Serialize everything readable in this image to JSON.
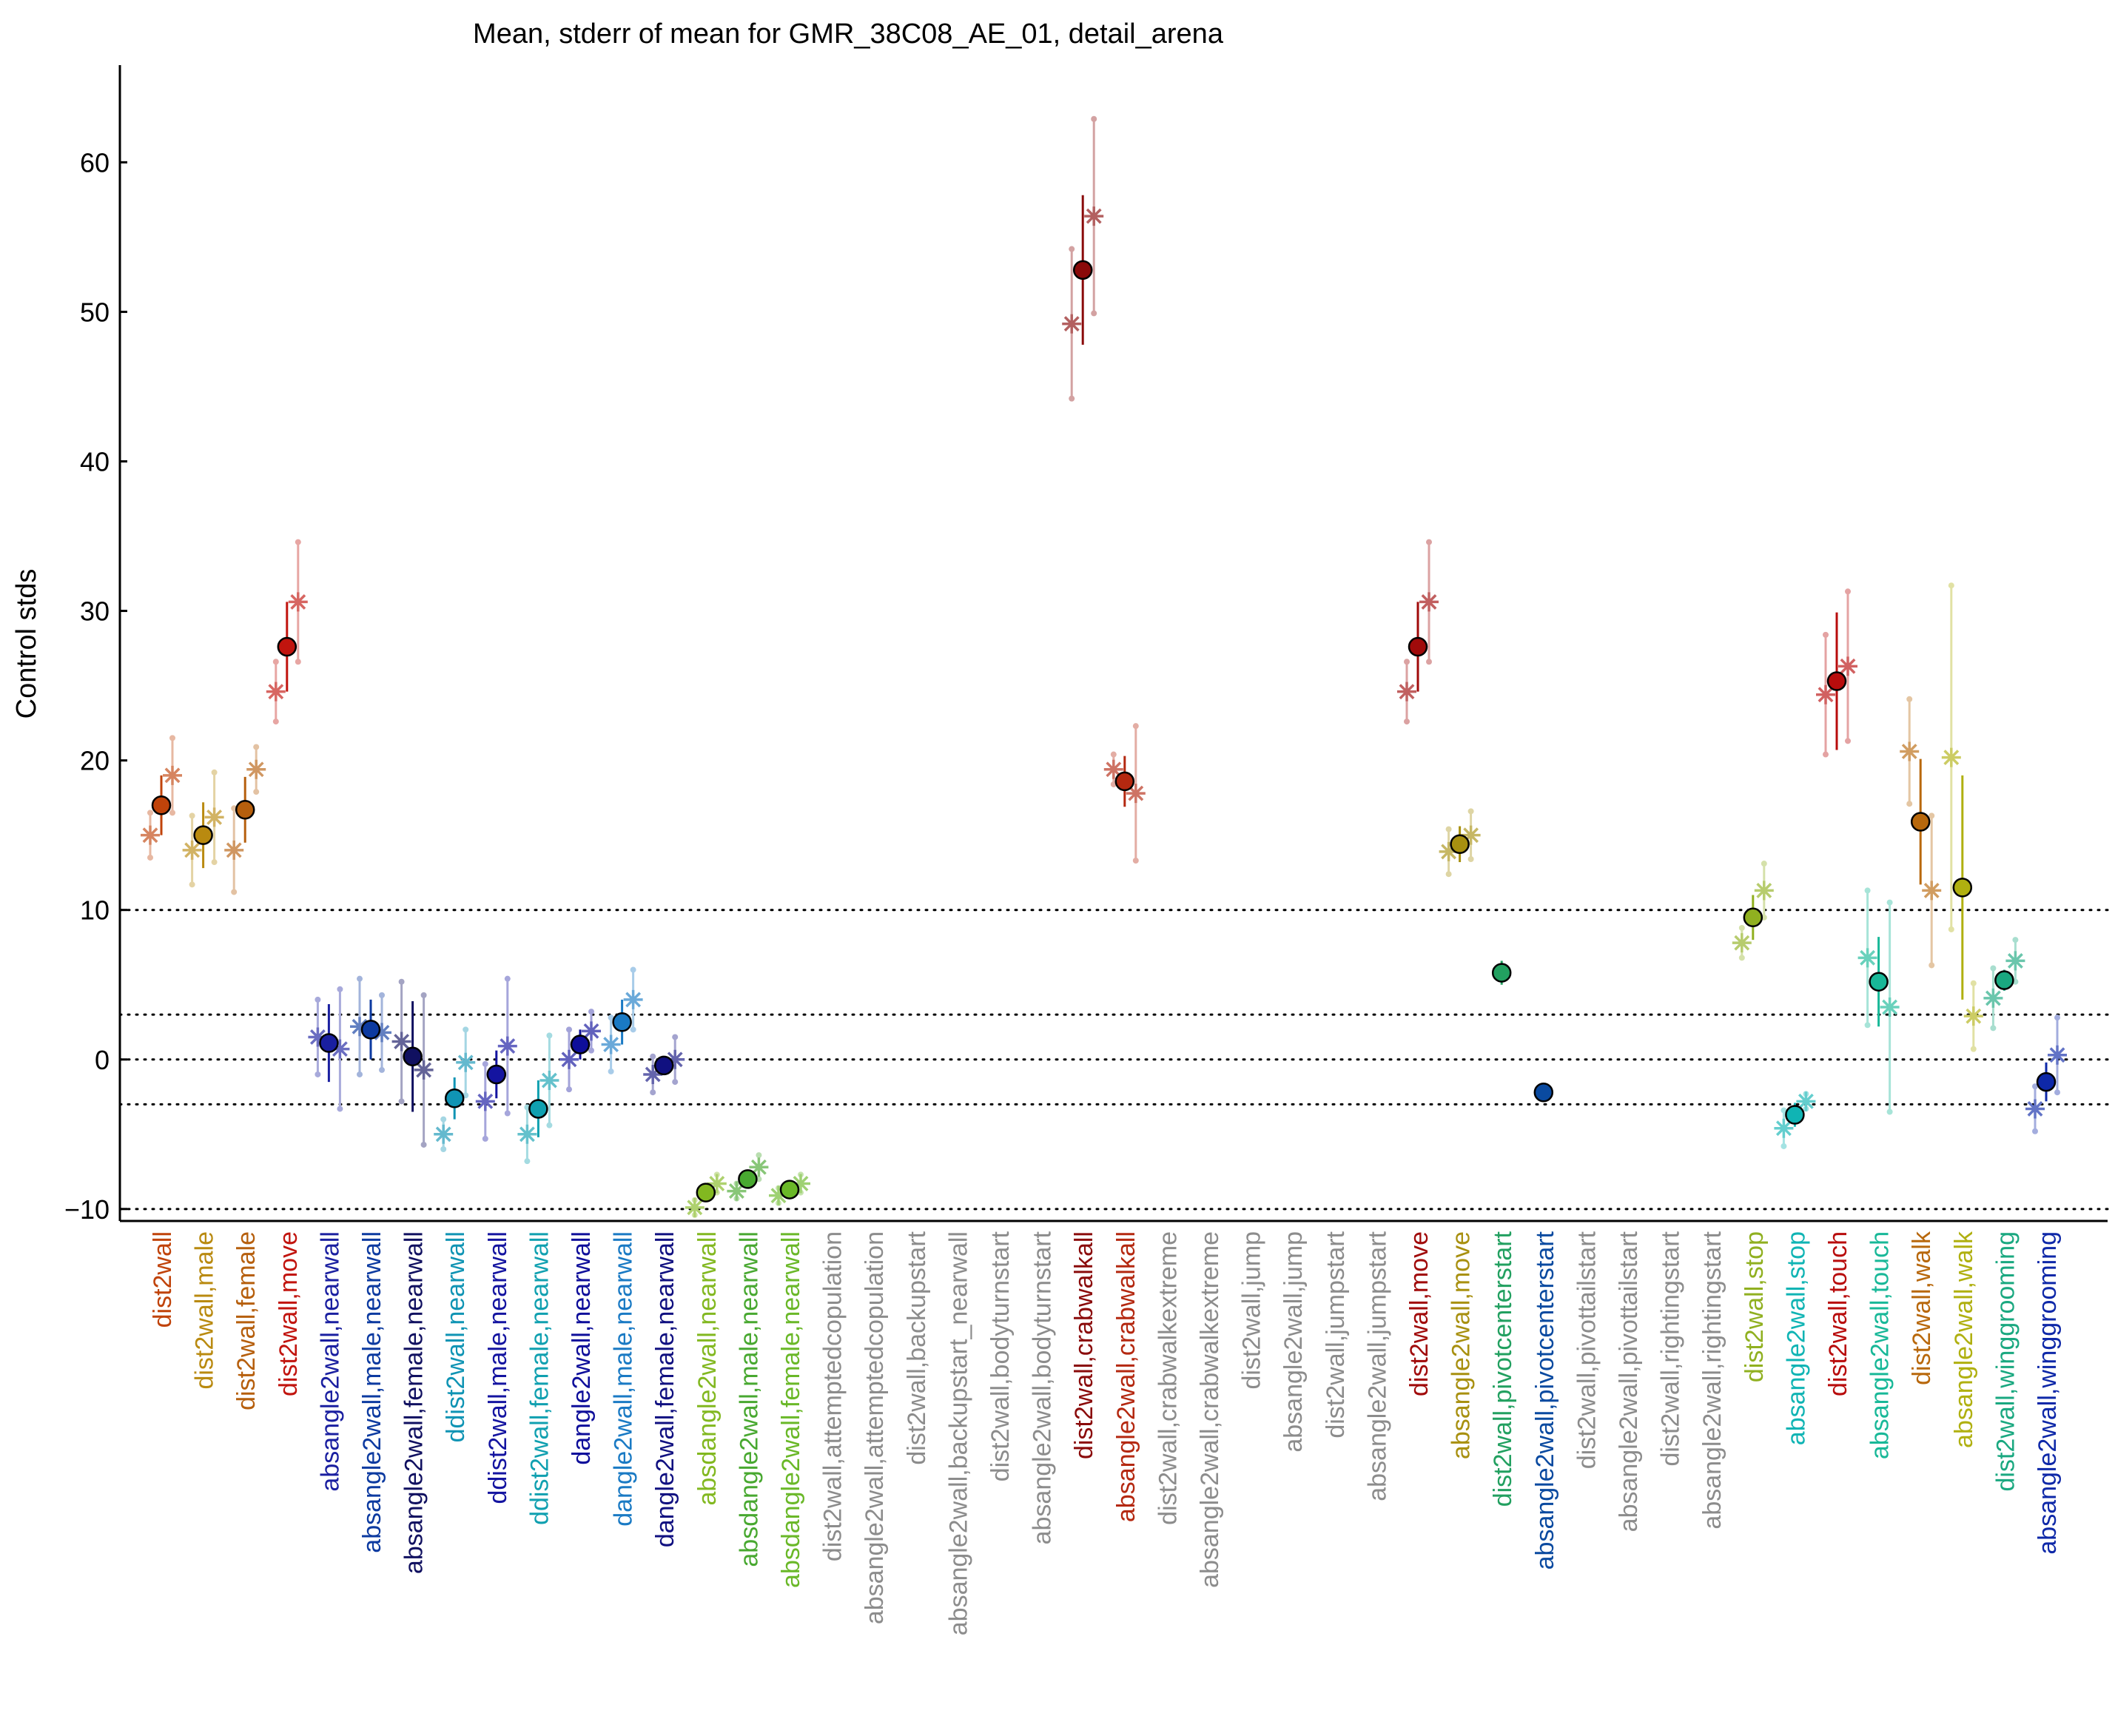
{
  "chart_data": {
    "type": "scatter",
    "title": "Mean, stderr of mean for GMR_38C08_AE_01, detail_arena",
    "ylabel": "Control stds",
    "xlabel": "",
    "ylim": [
      -10.8,
      66.5
    ],
    "yticks": [
      -10,
      0,
      10,
      20,
      30,
      40,
      50,
      60
    ],
    "reference_lines": [
      -10,
      -3,
      0,
      3,
      10
    ],
    "grid": false,
    "series": [
      {
        "label": "dist2wall",
        "color": "#c0430a",
        "mean": 17.0,
        "sem": 2.0,
        "a": 15.0,
        "a_sem": 1.5,
        "b": 19.0,
        "b_sem": 2.5
      },
      {
        "label": "dist2wall,male",
        "color": "#b98a10",
        "mean": 15.0,
        "sem": 2.2,
        "a": 14.0,
        "a_sem": 2.3,
        "b": 16.2,
        "b_sem": 3.0
      },
      {
        "label": "dist2wall,female",
        "color": "#b65f0d",
        "mean": 16.7,
        "sem": 2.2,
        "a": 14.0,
        "a_sem": 2.8,
        "b": 19.4,
        "b_sem": 1.5
      },
      {
        "label": "dist2wall,move",
        "color": "#c1140e",
        "mean": 27.6,
        "sem": 3.0,
        "a": 24.6,
        "a_sem": 2.0,
        "b": 30.6,
        "b_sem": 4.0
      },
      {
        "label": "absangle2wall,nearwall",
        "color": "#1a1fa0",
        "mean": 1.1,
        "sem": 2.6,
        "a": 1.5,
        "a_sem": 2.5,
        "b": 0.7,
        "b_sem": 4.0
      },
      {
        "label": "absangle2wall,male,nearwall",
        "color": "#0c3aa0",
        "mean": 2.0,
        "sem": 2.0,
        "a": 2.2,
        "a_sem": 3.2,
        "b": 1.8,
        "b_sem": 2.5
      },
      {
        "label": "absangle2wall,female,nearwall",
        "color": "#101060",
        "mean": 0.2,
        "sem": 3.7,
        "a": 1.2,
        "a_sem": 4.0,
        "b": -0.7,
        "b_sem": 5.0
      },
      {
        "label": "ddist2wall,nearwall",
        "color": "#1094b4",
        "mean": -2.6,
        "sem": 1.4,
        "a": -5.0,
        "a_sem": 1.0,
        "b": -0.2,
        "b_sem": 2.2
      },
      {
        "label": "ddist2wall,male,nearwall",
        "color": "#1414a0",
        "mean": -1.0,
        "sem": 1.6,
        "a": -2.8,
        "a_sem": 2.5,
        "b": 0.9,
        "b_sem": 4.5
      },
      {
        "label": "ddist2wall,female,nearwall",
        "color": "#10a0b0",
        "mean": -3.3,
        "sem": 1.9,
        "a": -5.0,
        "a_sem": 1.8,
        "b": -1.4,
        "b_sem": 3.0
      },
      {
        "label": "dangle2wall,nearwall",
        "color": "#0e0e9a",
        "mean": 1.0,
        "sem": 1.0,
        "a": 0.0,
        "a_sem": 2.0,
        "b": 1.9,
        "b_sem": 1.3
      },
      {
        "label": "dangle2wall,male,nearwall",
        "color": "#1a7ac4",
        "mean": 2.5,
        "sem": 1.5,
        "a": 1.0,
        "a_sem": 1.8,
        "b": 4.0,
        "b_sem": 2.0
      },
      {
        "label": "dangle2wall,female,nearwall",
        "color": "#101080",
        "mean": -0.4,
        "sem": 0.6,
        "a": -1.0,
        "a_sem": 1.2,
        "b": 0.0,
        "b_sem": 1.5
      },
      {
        "label": "absdangle2wall,nearwall",
        "color": "#82b820",
        "mean": -8.9,
        "sem": 0.5,
        "a": -9.9,
        "a_sem": 0.5,
        "b": -8.3,
        "b_sem": 0.6
      },
      {
        "label": "absdangle2wall,male,nearwall",
        "color": "#48a830",
        "mean": -8.0,
        "sem": 0.6,
        "a": -8.8,
        "a_sem": 0.5,
        "b": -7.2,
        "b_sem": 0.8
      },
      {
        "label": "absdangle2wall,female,nearwall",
        "color": "#6ab828",
        "mean": -8.7,
        "sem": 0.5,
        "a": -9.1,
        "a_sem": 0.5,
        "b": -8.3,
        "b_sem": 0.6
      },
      {
        "label": "dist2wall,attemptedcopulation",
        "color": "#8c8c8c",
        "mean": null
      },
      {
        "label": "absangle2wall,attemptedcopulation",
        "color": "#8c8c8c",
        "mean": null
      },
      {
        "label": "dist2wall,backupstart",
        "color": "#8c8c8c",
        "mean": null
      },
      {
        "label": "absangle2wall,backupstart_nearwall",
        "color": "#8c8c8c",
        "mean": null
      },
      {
        "label": "dist2wall,bodyturnstart",
        "color": "#8c8c8c",
        "mean": null
      },
      {
        "label": "absangle2wall,bodyturnstart",
        "color": "#8c8c8c",
        "mean": null
      },
      {
        "label": "dist2wall,crabwalkall",
        "color": "#8a0a0a",
        "mean": 52.8,
        "sem": 5.0,
        "a": 49.2,
        "a_sem": 5.0,
        "b": 56.4,
        "b_sem": 6.5
      },
      {
        "label": "absangle2wall,crabwalkall",
        "color": "#b42810",
        "mean": 18.6,
        "sem": 1.7,
        "a": 19.4,
        "a_sem": 1.0,
        "b": 17.8,
        "b_sem": 4.5
      },
      {
        "label": "dist2wall,crabwalkextreme",
        "color": "#8c8c8c",
        "mean": null
      },
      {
        "label": "absangle2wall,crabwalkextreme",
        "color": "#8c8c8c",
        "mean": null
      },
      {
        "label": "dist2wall,jump",
        "color": "#8c8c8c",
        "mean": null
      },
      {
        "label": "absangle2wall,jump",
        "color": "#8c8c8c",
        "mean": null
      },
      {
        "label": "dist2wall,jumpstart",
        "color": "#8c8c8c",
        "mean": null
      },
      {
        "label": "absangle2wall,jumpstart",
        "color": "#8c8c8c",
        "mean": null
      },
      {
        "label": "dist2wall,move",
        "color": "#a00a0a",
        "mean": 27.6,
        "sem": 3.0,
        "a": 24.6,
        "a_sem": 2.0,
        "b": 30.6,
        "b_sem": 4.0
      },
      {
        "label": "absangle2wall,move",
        "color": "#a89010",
        "mean": 14.4,
        "sem": 1.2,
        "a": 13.9,
        "a_sem": 1.5,
        "b": 15.0,
        "b_sem": 1.6
      },
      {
        "label": "dist2wall,pivotcenterstart",
        "color": "#22a060",
        "mean": 5.8,
        "sem": 0.8,
        "a": null,
        "b": null
      },
      {
        "label": "absangle2wall,pivotcenterstart",
        "color": "#0a4aa0",
        "mean": -2.2,
        "sem": 0.0,
        "a": null,
        "b": null
      },
      {
        "label": "dist2wall,pivottailstart",
        "color": "#8c8c8c",
        "mean": null
      },
      {
        "label": "absangle2wall,pivottailstart",
        "color": "#8c8c8c",
        "mean": null
      },
      {
        "label": "dist2wall,rightingstart",
        "color": "#8c8c8c",
        "mean": null
      },
      {
        "label": "absangle2wall,rightingstart",
        "color": "#8c8c8c",
        "mean": null
      },
      {
        "label": "dist2wall,stop",
        "color": "#90b020",
        "mean": 9.5,
        "sem": 1.5,
        "a": 7.8,
        "a_sem": 1.0,
        "b": 11.3,
        "b_sem": 1.8
      },
      {
        "label": "absangle2wall,stop",
        "color": "#10b4b4",
        "mean": -3.7,
        "sem": 0.8,
        "a": -4.6,
        "a_sem": 1.2,
        "b": -2.8,
        "b_sem": 0.5
      },
      {
        "label": "dist2wall,touch",
        "color": "#b80c0c",
        "mean": 25.3,
        "sem": 4.6,
        "a": 24.4,
        "a_sem": 4.0,
        "b": 26.3,
        "b_sem": 5.0
      },
      {
        "label": "absangle2wall,touch",
        "color": "#18b898",
        "mean": 5.2,
        "sem": 3.0,
        "a": 6.8,
        "a_sem": 4.5,
        "b": 3.5,
        "b_sem": 7.0
      },
      {
        "label": "dist2wall,walk",
        "color": "#b8680c",
        "mean": 15.9,
        "sem": 4.2,
        "a": 20.6,
        "a_sem": 3.5,
        "b": 11.3,
        "b_sem": 5.0
      },
      {
        "label": "absangle2wall,walk",
        "color": "#b0b010",
        "mean": 11.5,
        "sem": 7.5,
        "a": 20.2,
        "a_sem": 11.5,
        "b": 2.9,
        "b_sem": 2.2
      },
      {
        "label": "dist2wall,winggrooming",
        "color": "#1aa880",
        "mean": 5.3,
        "sem": 0.7,
        "a": 4.1,
        "a_sem": 2.0,
        "b": 6.6,
        "b_sem": 1.4
      },
      {
        "label": "absangle2wall,winggrooming",
        "color": "#0e28a8",
        "mean": -1.5,
        "sem": 1.3,
        "a": -3.3,
        "a_sem": 1.5,
        "b": 0.3,
        "b_sem": 2.5
      }
    ]
  }
}
